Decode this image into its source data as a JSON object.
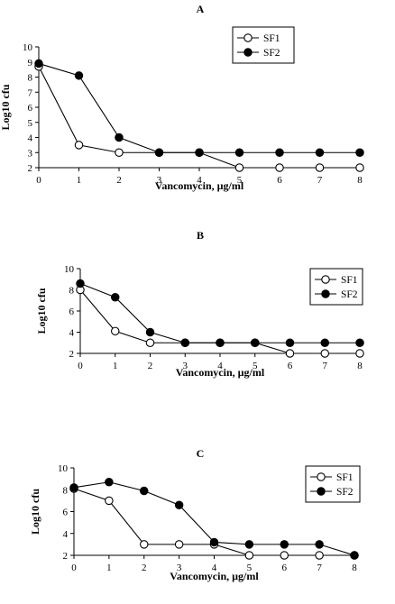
{
  "chart_data": [
    {
      "type": "line",
      "panel_label": "A",
      "xlabel": "Vancomycin, µg/ml",
      "ylabel": "Log10 cfu",
      "x": [
        0,
        1,
        2,
        3,
        4,
        5,
        6,
        7,
        8
      ],
      "xlim": [
        0,
        8
      ],
      "ylim": [
        2,
        10
      ],
      "yticks": [
        2,
        3,
        4,
        5,
        6,
        7,
        8,
        9,
        10
      ],
      "legend_position": "top-right",
      "series": [
        {
          "name": "SF1",
          "marker": "open-circle",
          "values": [
            8.7,
            3.5,
            3.0,
            3.0,
            3.0,
            2.0,
            2.0,
            2.0,
            2.0
          ]
        },
        {
          "name": "SF2",
          "marker": "filled-circle",
          "values": [
            8.9,
            8.1,
            4.0,
            3.0,
            3.0,
            3.0,
            3.0,
            3.0,
            3.0
          ]
        }
      ]
    },
    {
      "type": "line",
      "panel_label": "B",
      "xlabel": "Vancomycin, µg/ml",
      "ylabel": "Log10 cfu",
      "x": [
        0,
        1,
        2,
        3,
        4,
        5,
        6,
        7,
        8
      ],
      "xlim": [
        0,
        8
      ],
      "ylim": [
        2,
        10
      ],
      "yticks": [
        2,
        4,
        6,
        8,
        10
      ],
      "legend_position": "right",
      "series": [
        {
          "name": "SF1",
          "marker": "open-circle",
          "values": [
            8.0,
            4.1,
            3.0,
            3.0,
            3.0,
            3.0,
            2.0,
            2.0,
            2.0
          ]
        },
        {
          "name": "SF2",
          "marker": "filled-circle",
          "values": [
            8.6,
            7.3,
            4.0,
            3.0,
            3.0,
            3.0,
            3.0,
            3.0,
            3.0
          ]
        }
      ]
    },
    {
      "type": "line",
      "panel_label": "C",
      "xlabel": "Vancomycin, µg/ml",
      "ylabel": "Log10 cfu",
      "x": [
        0,
        1,
        2,
        3,
        4,
        5,
        6,
        7,
        8
      ],
      "xlim": [
        0,
        8
      ],
      "ylim": [
        2,
        10
      ],
      "yticks": [
        2,
        4,
        6,
        8,
        10
      ],
      "legend_position": "right",
      "series": [
        {
          "name": "SF1",
          "marker": "open-circle",
          "values": [
            8.1,
            7.0,
            3.0,
            3.0,
            3.0,
            2.0,
            2.0,
            2.0,
            2.0
          ]
        },
        {
          "name": "SF2",
          "marker": "filled-circle",
          "values": [
            8.2,
            8.7,
            7.9,
            6.6,
            3.2,
            3.0,
            3.0,
            3.0,
            2.0
          ]
        }
      ]
    }
  ]
}
